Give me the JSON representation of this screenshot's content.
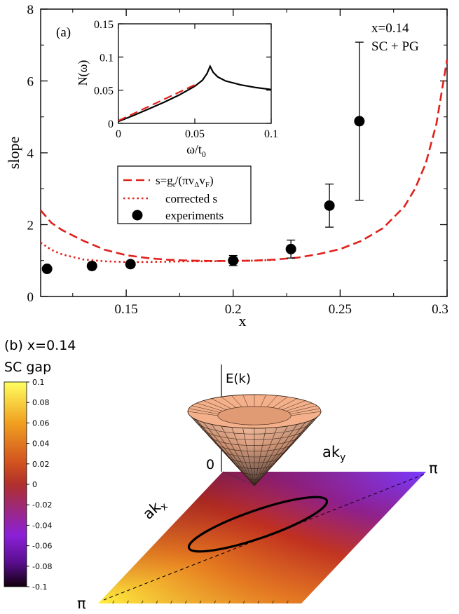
{
  "chart_data": [
    {
      "type": "line",
      "panel_label": "(a)",
      "xlabel": "x",
      "ylabel": "slope",
      "xlim": [
        0.11,
        0.3
      ],
      "ylim": [
        0,
        8
      ],
      "x_ticks": [
        "0.15",
        "0.2",
        "0.25",
        "0.3"
      ],
      "y_ticks": [
        "0",
        "2",
        "4",
        "6",
        "8"
      ],
      "annotation_lines": [
        "x=0.14",
        "SC + PG"
      ],
      "legend_position": "center-left",
      "series": [
        {
          "name": "s=g_t/(πv_Δv_F)",
          "legend": {
            "main": "s=g",
            "sub1": "t",
            "mid": "/(πv",
            "sub2": "Δ",
            "mid2": "v",
            "sub3": "F",
            "end": ")"
          },
          "style": "dashed",
          "color": "#e0201b",
          "x": [
            0.11,
            0.115,
            0.12,
            0.13,
            0.14,
            0.15,
            0.16,
            0.17,
            0.18,
            0.19,
            0.2,
            0.21,
            0.22,
            0.23,
            0.24,
            0.25,
            0.26,
            0.27,
            0.28,
            0.285,
            0.29,
            0.295,
            0.3
          ],
          "y": [
            2.4,
            2.05,
            1.85,
            1.55,
            1.3,
            1.15,
            1.07,
            1.02,
            1.0,
            0.99,
            0.99,
            1.0,
            1.03,
            1.08,
            1.18,
            1.32,
            1.55,
            1.9,
            2.5,
            3.0,
            3.7,
            4.8,
            6.6
          ]
        },
        {
          "name": "corrected s",
          "style": "dotted",
          "color": "#e0201b",
          "x": [
            0.11,
            0.115,
            0.12,
            0.13,
            0.14,
            0.15,
            0.16,
            0.17,
            0.18,
            0.19,
            0.2,
            0.21,
            0.22
          ],
          "y": [
            1.5,
            1.3,
            1.17,
            1.03,
            0.98,
            0.96,
            0.96,
            0.97,
            0.98,
            0.98,
            0.99,
            1.0,
            1.02
          ]
        },
        {
          "name": "experiments",
          "style": "markers",
          "color": "#000000",
          "x": [
            0.113,
            0.134,
            0.152,
            0.2,
            0.227,
            0.245,
            0.259
          ],
          "y": [
            0.77,
            0.85,
            0.9,
            1.0,
            1.32,
            2.53,
            4.88
          ],
          "y_err": [
            0,
            0,
            0,
            0.14,
            0.25,
            0.6,
            2.2
          ]
        }
      ]
    },
    {
      "type": "line",
      "role": "inset",
      "ylabel": "N(ω)",
      "xlabel": "ω/t_0",
      "xlabel_parts": {
        "main": "ω/t",
        "sub": "0"
      },
      "xlim": [
        0,
        0.1
      ],
      "ylim": [
        0,
        0.15
      ],
      "x_ticks": [
        "0",
        "0.05",
        "0.1"
      ],
      "y_ticks": [
        "0",
        "0.05",
        "0.1",
        "0.15"
      ],
      "series": [
        {
          "name": "",
          "style": "solid",
          "color": "#000000",
          "x": [
            0,
            0.01,
            0.02,
            0.03,
            0.04,
            0.05,
            0.055,
            0.058,
            0.06,
            0.062,
            0.065,
            0.07,
            0.08,
            0.09,
            0.1
          ],
          "y": [
            0.003,
            0.012,
            0.022,
            0.032,
            0.043,
            0.056,
            0.065,
            0.075,
            0.086,
            0.077,
            0.07,
            0.064,
            0.058,
            0.054,
            0.051
          ]
        },
        {
          "name": "",
          "style": "dashed",
          "color": "#e0201b",
          "x": [
            0,
            0.05
          ],
          "y": [
            0.004,
            0.058
          ]
        }
      ]
    },
    {
      "type": "heatmap",
      "panel_label": "(b) x=0.14",
      "colorbar_title": "SC gap",
      "colorbar_ticks": [
        "0.1",
        "0.08",
        "0.06",
        "0.04",
        "0.02",
        "0",
        "-0.02",
        "-0.04",
        "-0.06",
        "-0.08",
        "-0.1"
      ],
      "colorbar_range": [
        -0.1,
        0.1
      ],
      "axis_labels": {
        "energy": "E(k)",
        "kx": "ak",
        "kx_sub": "x",
        "ky": "ak",
        "ky_sub": "y",
        "origin": "0",
        "pi_left": "π",
        "pi_right": "π"
      },
      "colors": {
        "high": "#ffff40",
        "zero": "#b2342a",
        "low": "#1a0010",
        "mid_neg": "#8a2be2"
      }
    }
  ]
}
